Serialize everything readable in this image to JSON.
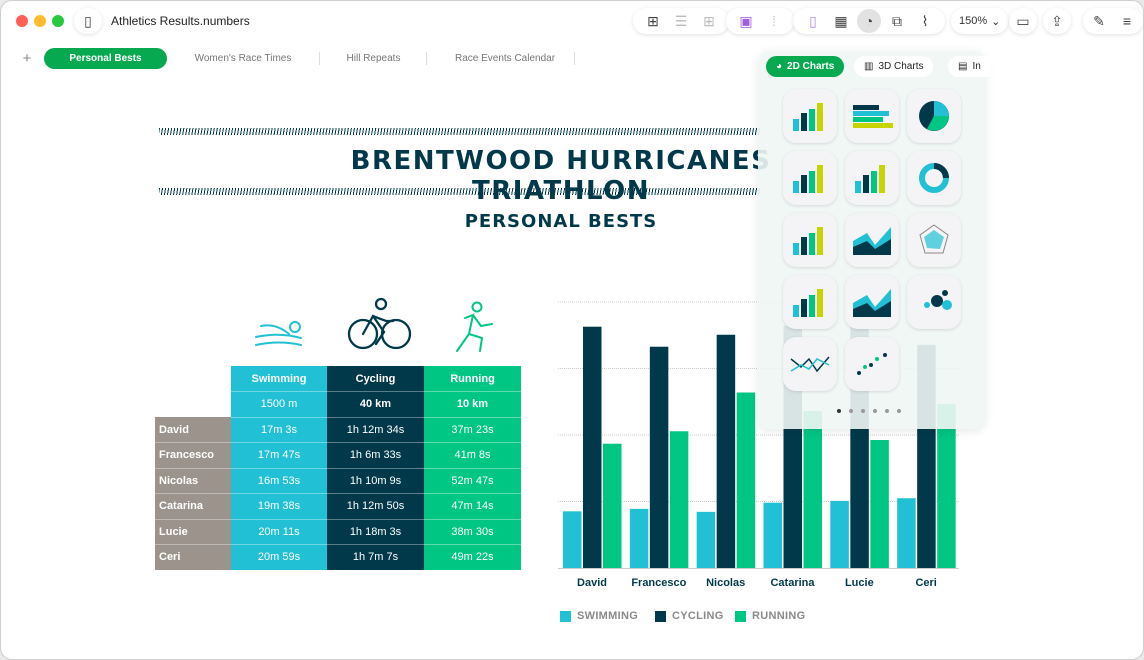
{
  "window": {
    "title": "Athletics Results.numbers"
  },
  "toolbar": {
    "zoom": "150%"
  },
  "sheets": [
    {
      "label": "Personal Bests",
      "active": true
    },
    {
      "label": "Women's Race Times"
    },
    {
      "label": "Hill Repeats"
    },
    {
      "label": "Race Events Calendar"
    }
  ],
  "doc": {
    "title": "BRENTWOOD HURRICANES TRIATHLON",
    "subtitle": "PERSONAL BESTS"
  },
  "table": {
    "headers": [
      "Swimming",
      "Cycling",
      "Running"
    ],
    "distances": [
      "1500 m",
      "40 km",
      "10 km"
    ],
    "rows": [
      {
        "name": "David",
        "swim": "17m 3s",
        "cycle": "1h 12m 34s",
        "run": "37m 23s"
      },
      {
        "name": "Francesco",
        "swim": "17m 47s",
        "cycle": "1h 6m 33s",
        "run": "41m 8s"
      },
      {
        "name": "Nicolas",
        "swim": "16m 53s",
        "cycle": "1h 10m 9s",
        "run": "52m 47s"
      },
      {
        "name": "Catarina",
        "swim": "19m 38s",
        "cycle": "1h 12m 50s",
        "run": "47m 14s"
      },
      {
        "name": "Lucie",
        "swim": "20m 11s",
        "cycle": "1h 18m 3s",
        "run": "38m 30s"
      },
      {
        "name": "Ceri",
        "swim": "20m 59s",
        "cycle": "1h 7m 7s",
        "run": "49m 22s"
      }
    ]
  },
  "colors": {
    "swimming": "#22c0d4",
    "cycling": "#02394a",
    "running": "#00c684",
    "names": "#9c948c",
    "accent": "#06a850"
  },
  "chart_data": {
    "type": "bar",
    "categories": [
      "David",
      "Francesco",
      "Nicolas",
      "Catarina",
      "Lucie",
      "Ceri"
    ],
    "series": [
      {
        "name": "SWIMMING",
        "values": [
          17.05,
          17.78,
          16.88,
          19.63,
          20.18,
          20.98
        ]
      },
      {
        "name": "CYCLING",
        "values": [
          72.57,
          66.55,
          70.15,
          72.83,
          78.05,
          67.12
        ]
      },
      {
        "name": "RUNNING",
        "values": [
          37.38,
          41.13,
          52.78,
          47.23,
          38.5,
          49.37
        ]
      }
    ],
    "ylim": [
      0,
      80
    ],
    "grid": true,
    "legend": "bottom-left"
  },
  "popover": {
    "tabs": [
      "2D Charts",
      "3D Charts",
      "In"
    ],
    "page": 1,
    "pages": 6
  }
}
